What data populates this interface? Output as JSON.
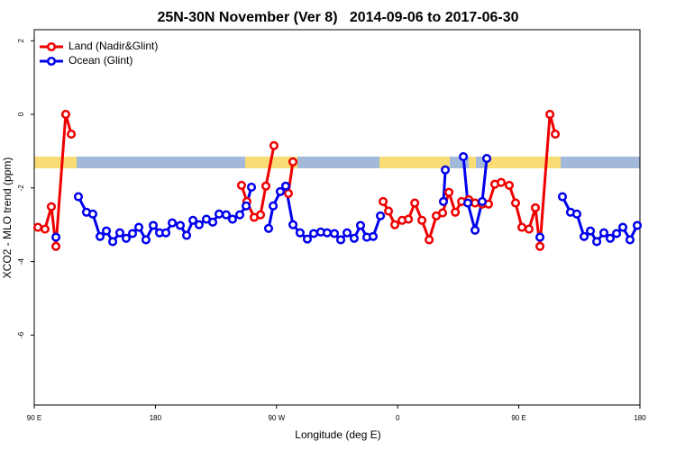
{
  "chart_data": {
    "type": "line",
    "title": "25N-30N November (Ver 8)   2014-09-06 to 2017-06-30",
    "xlabel": "Longitude (deg E)",
    "ylabel": "XCO2 - MLO trend (ppm)",
    "xlim": [
      90,
      540
    ],
    "ylim": [
      -7.9,
      2.3
    ],
    "xticks": [
      {
        "value": 90,
        "label": "90 E"
      },
      180,
      {
        "value": 270,
        "label": "90 W"
      },
      {
        "value": 360,
        "label": "0"
      },
      {
        "value": 450,
        "label": "90 E"
      },
      {
        "value": 540,
        "label": "180"
      }
    ],
    "yticks": [
      2,
      0,
      -2,
      -4,
      -6
    ],
    "legend": "top-left",
    "series": [
      {
        "name": "Land (Nadir&Glint)",
        "color": "#ee0000",
        "x": [
          92.7,
          98.0,
          102.7,
          106.1,
          113.4,
          117.5,
          null,
          244.0,
          248.0,
          253.4,
          258.1,
          262.1,
          268.1,
          null,
          278.8,
          282.2,
          null,
          349.2,
          353.2,
          357.9,
          363.3,
          368.0,
          372.7,
          378.0,
          383.4,
          388.7,
          393.4,
          398.1,
          402.8,
          407.5,
          412.8,
          417.5,
          422.8,
          427.5,
          432.2,
          436.9,
          442.9,
          447.6,
          452.3,
          457.6,
          462.3,
          465.7,
          473.1,
          477.1
        ],
        "values": [
          -3.07,
          -3.12,
          -2.51,
          -3.59,
          0,
          -0.54,
          null,
          -1.93,
          -2.37,
          -2.8,
          -2.73,
          -1.95,
          -0.85,
          null,
          -2.15,
          -1.29,
          null,
          -2.37,
          -2.63,
          -3.0,
          -2.88,
          -2.85,
          -2.41,
          -2.88,
          -3.41,
          -2.76,
          -2.68,
          -2.12,
          -2.66,
          -2.37,
          -2.32,
          -2.41,
          -2.44,
          -2.44,
          -1.9,
          -1.85,
          -1.93,
          -2.41,
          -3.07,
          -3.12,
          -2.54,
          -3.59,
          0,
          -0.54
        ]
      },
      {
        "name": "Ocean (Glint)",
        "color": "#0000ee",
        "x": [
          106.1,
          null,
          122.8,
          128.8,
          133.5,
          138.9,
          143.6,
          148.3,
          153.6,
          158.3,
          163.0,
          167.7,
          173.0,
          178.4,
          183.1,
          187.8,
          192.5,
          198.5,
          203.2,
          207.9,
          212.5,
          217.9,
          222.6,
          227.3,
          232.6,
          237.3,
          242.7,
          247.4,
          251.4,
          null,
          264.1,
          267.5,
          272.8,
          276.8,
          282.2,
          287.5,
          292.9,
          297.6,
          302.9,
          307.6,
          313.0,
          317.7,
          322.4,
          327.7,
          332.4,
          337.1,
          341.8,
          347.2,
          null,
          394.0,
          395.4,
          null,
          408.8,
          412.1,
          417.5,
          422.8,
          426.2,
          null,
          465.7,
          null,
          482.4,
          488.4,
          493.1,
          498.5,
          503.2,
          507.9,
          513.2,
          517.9,
          522.6,
          527.3,
          532.6,
          538.0
        ],
        "values": [
          -3.34,
          null,
          -2.24,
          -2.66,
          -2.71,
          -3.32,
          -3.17,
          -3.46,
          -3.22,
          -3.37,
          -3.24,
          -3.07,
          -3.41,
          -3.02,
          -3.22,
          -3.22,
          -2.95,
          -3.02,
          -3.29,
          -2.88,
          -3.0,
          -2.85,
          -2.93,
          -2.71,
          -2.73,
          -2.85,
          -2.73,
          -2.49,
          -1.98,
          null,
          -3.1,
          -2.49,
          -2.1,
          -1.95,
          -3.0,
          -3.22,
          -3.39,
          -3.24,
          -3.2,
          -3.22,
          -3.24,
          -3.41,
          -3.22,
          -3.37,
          -3.02,
          -3.34,
          -3.32,
          -2.76,
          null,
          -2.37,
          -1.51,
          null,
          -1.15,
          -2.41,
          -3.15,
          -2.37,
          -1.2,
          null,
          -3.34,
          null,
          -2.24,
          -2.66,
          -2.71,
          -3.32,
          -3.17,
          -3.46,
          -3.22,
          -3.37,
          -3.24,
          -3.07,
          -3.41,
          -3.02
        ]
      }
    ]
  }
}
